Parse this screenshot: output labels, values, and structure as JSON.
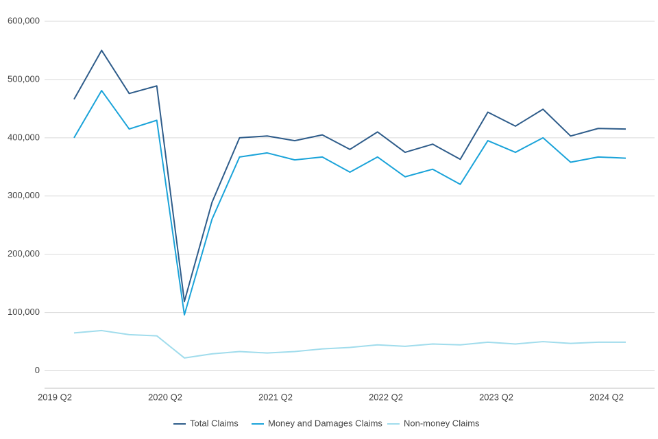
{
  "chart_data": {
    "type": "line",
    "categories": [
      "2019 Q2",
      null,
      null,
      null,
      "2020 Q2",
      null,
      null,
      null,
      "2021 Q2",
      null,
      null,
      null,
      "2022 Q2",
      null,
      null,
      null,
      "2023 Q2",
      null,
      null,
      null,
      "2024 Q2"
    ],
    "series": [
      {
        "name": "Total Claims",
        "color": "#2e5c8a",
        "values": [
          466000,
          550000,
          476000,
          489000,
          119000,
          289000,
          400000,
          403000,
          395000,
          405000,
          380000,
          410000,
          375000,
          389000,
          363000,
          444000,
          420000,
          449000,
          403000,
          416000,
          415000
        ]
      },
      {
        "name": "Money and Damages Claims",
        "color": "#1aa3d9",
        "values": [
          400000,
          481000,
          415000,
          430000,
          96000,
          260000,
          367000,
          374000,
          362000,
          367000,
          341000,
          367000,
          333000,
          346000,
          320000,
          395000,
          375000,
          400000,
          358000,
          367000,
          365000
        ]
      },
      {
        "name": "Non-money Claims",
        "color": "#a0dcec",
        "values": [
          65000,
          69000,
          62000,
          60000,
          22000,
          29000,
          33000,
          30500,
          33000,
          37500,
          40000,
          44500,
          42000,
          46000,
          44500,
          49000,
          46000,
          50000,
          47000,
          49000,
          49000
        ]
      }
    ],
    "ylim": [
      -30000,
      600000
    ],
    "yticks": [
      0,
      {
        "value": 100000,
        "label": "100,000"
      },
      {
        "value": 200000,
        "label": "200,000"
      },
      {
        "value": 300000,
        "label": "300,000"
      },
      {
        "value": 400000,
        "label": "400,000"
      },
      {
        "value": 500000,
        "label": "500,000"
      },
      {
        "value": 600000,
        "label": "600,000"
      }
    ],
    "grid": true,
    "legend": "bottom"
  }
}
